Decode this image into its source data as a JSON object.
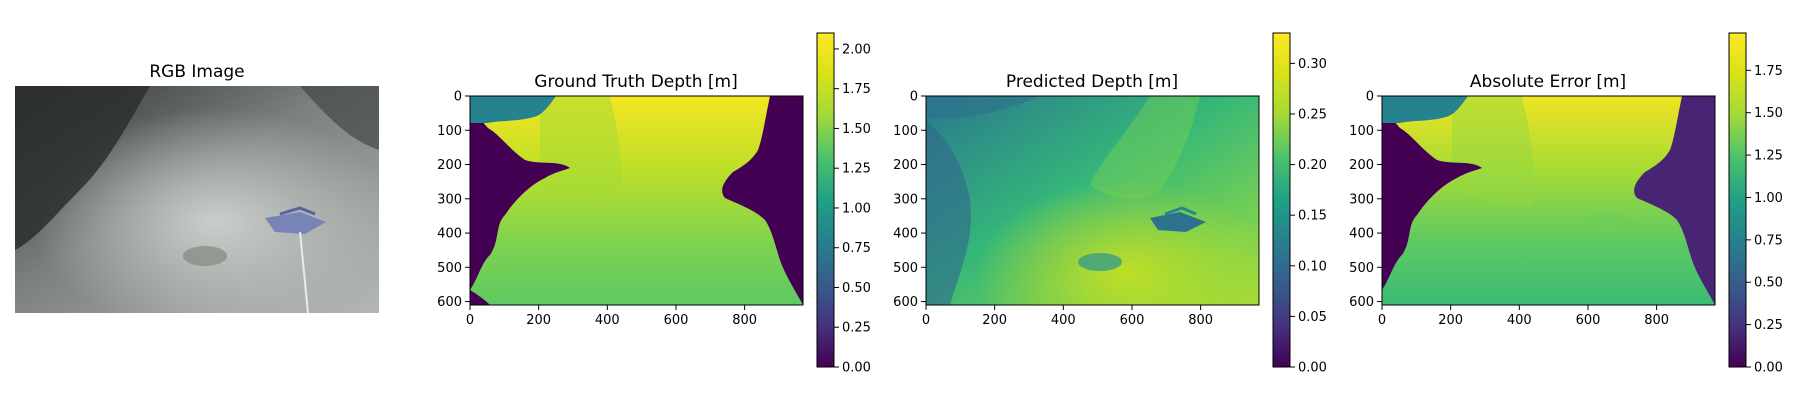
{
  "chart_data": [
    {
      "type": "image",
      "title": "RGB Image"
    },
    {
      "type": "heatmap",
      "title": "Ground Truth Depth [m]",
      "xlim": [
        0,
        970
      ],
      "ylim": [
        610,
        0
      ],
      "xticks": [
        0,
        200,
        400,
        600,
        800
      ],
      "yticks": [
        0,
        100,
        200,
        300,
        400,
        500,
        600
      ],
      "colormap": "viridis",
      "colorbar": {
        "min": 0.0,
        "max": 2.1,
        "ticks": [
          "0.00",
          "0.25",
          "0.50",
          "0.75",
          "1.00",
          "1.25",
          "1.50",
          "1.75",
          "2.00"
        ]
      }
    },
    {
      "type": "heatmap",
      "title": "Predicted Depth [m]",
      "xlim": [
        0,
        970
      ],
      "ylim": [
        610,
        0
      ],
      "xticks": [
        0,
        200,
        400,
        600,
        800
      ],
      "yticks": [
        0,
        100,
        200,
        300,
        400,
        500,
        600
      ],
      "colormap": "viridis",
      "colorbar": {
        "min": 0.0,
        "max": 0.33,
        "ticks": [
          "0.00",
          "0.05",
          "0.10",
          "0.15",
          "0.20",
          "0.25",
          "0.30"
        ]
      }
    },
    {
      "type": "heatmap",
      "title": "Absolute Error [m]",
      "xlim": [
        0,
        970
      ],
      "ylim": [
        610,
        0
      ],
      "xticks": [
        0,
        200,
        400,
        600,
        800
      ],
      "yticks": [
        0,
        100,
        200,
        300,
        400,
        500,
        600
      ],
      "colormap": "viridis",
      "colorbar": {
        "min": 0.0,
        "max": 1.97,
        "ticks": [
          "0.00",
          "0.25",
          "0.50",
          "0.75",
          "1.00",
          "1.25",
          "1.50",
          "1.75"
        ]
      }
    }
  ]
}
